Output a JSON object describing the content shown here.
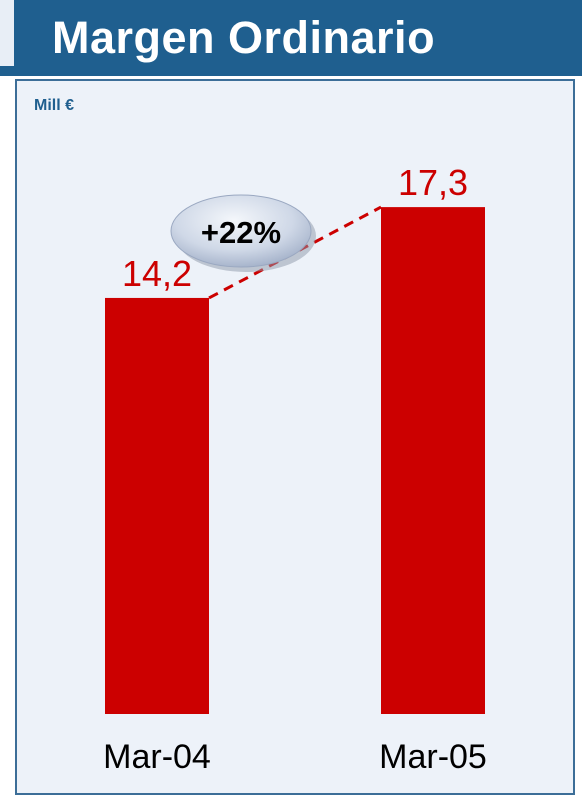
{
  "header": {
    "title": "Margen Ordinario"
  },
  "unit_label": "Mill €",
  "growth_badge": "+22%",
  "colors": {
    "bar": "#cc0000",
    "value_label": "#cc0000",
    "header": "#1f5f8f",
    "panel_bg": "#edf2f9",
    "badge": "#c9d3e4"
  },
  "chart_data": {
    "type": "bar",
    "categories": [
      "Mar-04",
      "Mar-05"
    ],
    "values": [
      14.2,
      17.3
    ],
    "value_labels": [
      "14,2",
      "17,3"
    ],
    "title": "Margen Ordinario",
    "ylabel": "Mill €",
    "xlabel": "",
    "ylim": [
      0,
      18
    ],
    "grid": false,
    "connector": "dashed",
    "annotation": "+22%"
  }
}
